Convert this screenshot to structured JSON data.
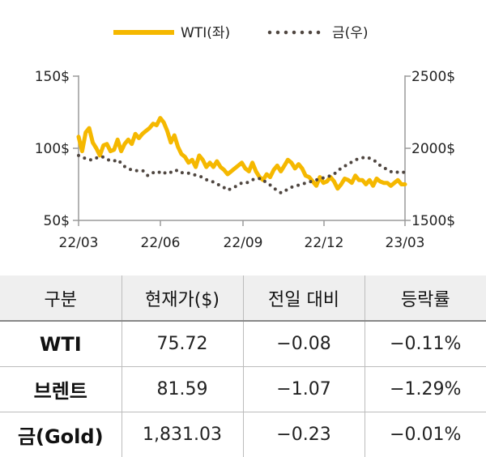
{
  "chart_data": {
    "type": "line",
    "legend": {
      "placement": "top-center",
      "entries": [
        "WTI(좌)",
        "금(우)"
      ]
    },
    "x_ticks": [
      "22/03",
      "22/06",
      "22/09",
      "22/12",
      "23/03"
    ],
    "y_left": {
      "ticks": [
        "150$",
        "100$",
        "50$"
      ],
      "range": [
        50,
        150
      ]
    },
    "y_right": {
      "ticks": [
        "2500$",
        "2000$",
        "1500$"
      ],
      "range": [
        1500,
        2500
      ]
    },
    "grid": false,
    "series": [
      {
        "name": "WTI(좌)",
        "axis": "left",
        "color": "#F5B800",
        "style": "solid",
        "values": [
          108,
          98,
          111,
          114,
          104,
          100,
          95,
          102,
          103,
          98,
          99,
          106,
          98,
          103,
          106,
          103,
          110,
          107,
          110,
          112,
          114,
          117,
          116,
          121,
          118,
          112,
          104,
          109,
          101,
          96,
          94,
          90,
          92,
          87,
          95,
          92,
          87,
          90,
          87,
          91,
          87,
          85,
          82,
          84,
          86,
          88,
          90,
          86,
          84,
          90,
          84,
          80,
          78,
          82,
          80,
          85,
          88,
          84,
          88,
          92,
          90,
          86,
          89,
          86,
          81,
          80,
          77,
          74,
          80,
          76,
          77,
          80,
          77,
          72,
          75,
          79,
          78,
          76,
          81,
          78,
          78,
          75,
          78,
          74,
          79,
          77,
          76,
          76,
          74,
          76,
          78,
          75,
          75
        ]
      },
      {
        "name": "금(우)",
        "axis": "right",
        "color": "#4F4640",
        "style": "dotted",
        "values": [
          1950,
          1935,
          1920,
          1920,
          1940,
          1940,
          1920,
          1910,
          1920,
          1880,
          1860,
          1845,
          1845,
          1845,
          1810,
          1830,
          1840,
          1820,
          1840,
          1830,
          1850,
          1830,
          1830,
          1820,
          1810,
          1800,
          1780,
          1770,
          1750,
          1740,
          1710,
          1720,
          1740,
          1760,
          1760,
          1780,
          1790,
          1790,
          1760,
          1740,
          1710,
          1690,
          1710,
          1730,
          1740,
          1750,
          1760,
          1770,
          1780,
          1790,
          1800,
          1810,
          1830,
          1860,
          1880,
          1900,
          1920,
          1930,
          1940,
          1930,
          1910,
          1880,
          1860,
          1840,
          1830,
          1840,
          1831
        ]
      }
    ]
  },
  "table": {
    "headers": [
      "구분",
      "현재가($)",
      "전일 대비",
      "등락률"
    ],
    "rows": [
      {
        "name": "WTI",
        "price": "75.72",
        "change": "−0.08",
        "rate": "−0.11%"
      },
      {
        "name": "브렌트",
        "price": "81.59",
        "change": "−1.07",
        "rate": "−1.29%"
      },
      {
        "name": "금(Gold)",
        "price": "1,831.03",
        "change": "−0.23",
        "rate": "−0.01%"
      }
    ]
  }
}
